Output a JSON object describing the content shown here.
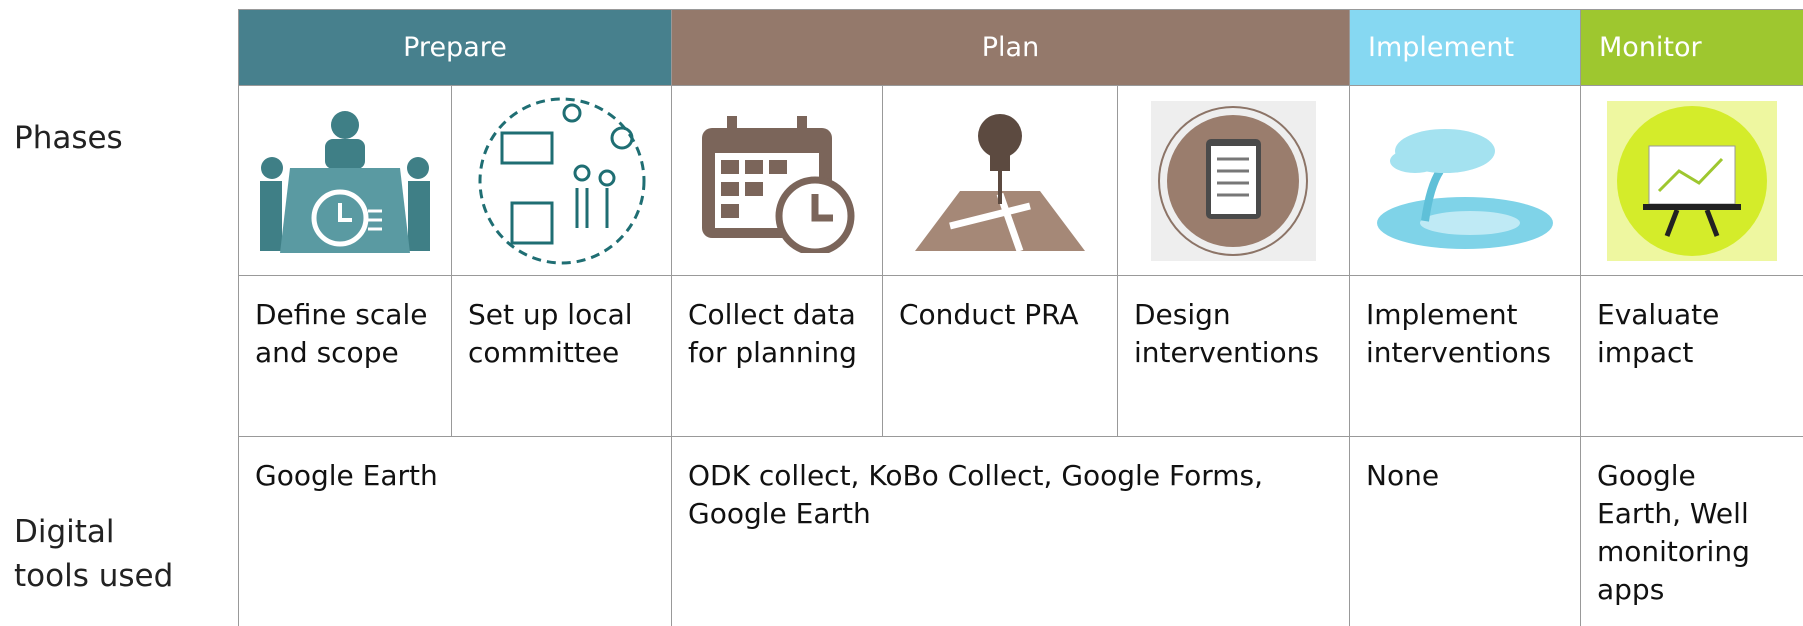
{
  "side_labels": {
    "phases": "Phases",
    "tools": "Digital tools used"
  },
  "phases": [
    {
      "name": "Prepare",
      "color": "#47808d"
    },
    {
      "name": "Plan",
      "color": "#94796b"
    },
    {
      "name": "Implement",
      "color": "#86d8f2"
    },
    {
      "name": "Monitor",
      "color": "#9ec72f"
    }
  ],
  "steps": [
    "Define scale and scope",
    "Set up local committee",
    "Collect data for planning",
    "Conduct PRA",
    "Design interventions",
    "Implement interventions",
    "Evaluate impact"
  ],
  "tools": [
    "Google Earth",
    "ODK collect, KoBo Collect, Google Forms, Google Earth",
    "None",
    "Google Earth, Well monitoring apps"
  ]
}
